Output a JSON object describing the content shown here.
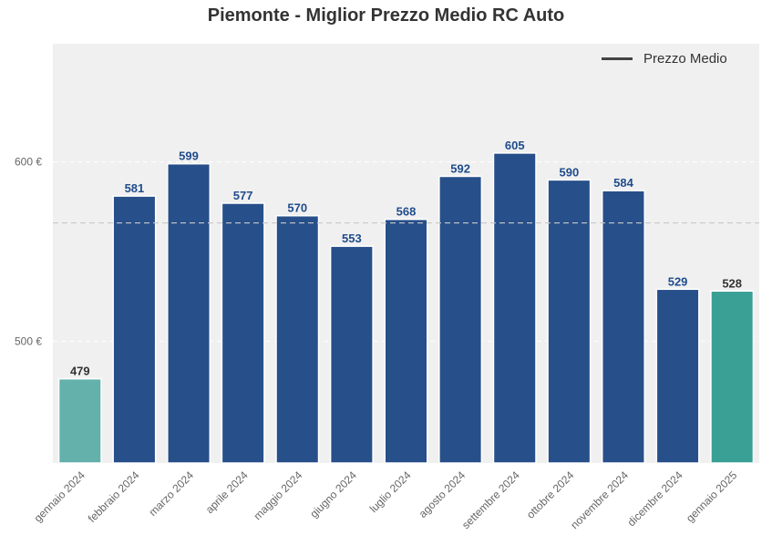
{
  "chart_data": {
    "type": "bar",
    "title": "Piemonte - Miglior Prezzo Medio RC Auto",
    "xlabel": "",
    "ylabel": "",
    "categories": [
      "gennaio 2024",
      "febbraio 2024",
      "marzo 2024",
      "aprile 2024",
      "maggio 2024",
      "giugno 2024",
      "luglio 2024",
      "agosto 2024",
      "settembre 2024",
      "ottobre 2024",
      "novembre 2024",
      "dicembre 2024",
      "gennaio 2025"
    ],
    "values": [
      479,
      581,
      599,
      577,
      570,
      553,
      568,
      592,
      605,
      590,
      584,
      529,
      528
    ],
    "data_labels": [
      "479",
      "581",
      "599",
      "577",
      "570",
      "553",
      "568",
      "592",
      "605",
      "590",
      "584",
      "529",
      "528"
    ],
    "ylim": [
      432,
      666
    ],
    "yticks": [
      500,
      600
    ],
    "ytick_labels": [
      "500 €",
      "600 €"
    ],
    "reference_line": {
      "label": "Prezzo Medio",
      "value": 566
    },
    "legend": {
      "position": "top-right",
      "entries": [
        "Prezzo Medio"
      ]
    },
    "grid": true,
    "colors": {
      "bar_default": "#274f8a",
      "bar_first": "#64b1ab",
      "bar_last": "#3a9f95",
      "label_default": "#1f4c8c",
      "label_highlight": "#333333",
      "plot_background": "#f0f0f0",
      "reference_line": "#c8c8c8"
    }
  }
}
